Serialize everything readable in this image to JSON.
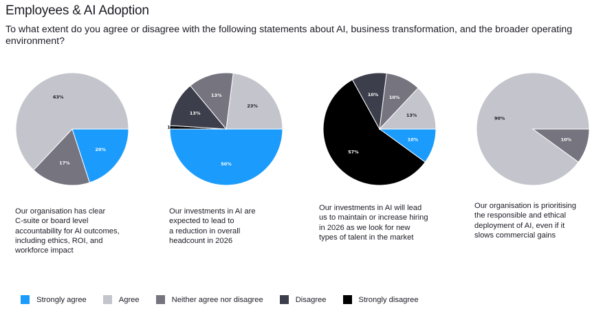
{
  "title": "Employees & AI Adoption",
  "subtitle": "To what extent do you agree or disagree with the following statements about AI, business transformation, and the broader operating environment?",
  "colors": {
    "Strongly agree": "#1b9cfc",
    "Agree": "#c4c4cc",
    "Neither agree nor disagree": "#75747f",
    "Disagree": "#3d3e4b",
    "Strongly disagree": "#000000"
  },
  "legend": [
    "Strongly agree",
    "Agree",
    "Neither agree nor disagree",
    "Disagree",
    "Strongly disagree"
  ],
  "chart_data": [
    {
      "type": "pie",
      "title": "Our organisation has clear\nC-suite or board level\naccountability for AI outcomes,\nincluding ethics, ROI, and\nworkforce impact",
      "slices": [
        {
          "name": "Strongly agree",
          "value": 20,
          "label": "20%"
        },
        {
          "name": "Neither agree nor disagree",
          "value": 17,
          "label": "17%"
        },
        {
          "name": "Agree",
          "value": 63,
          "label": "63%"
        }
      ]
    },
    {
      "type": "pie",
      "title": "Our investments in AI are\nexpected to lead to\na reduction in overall\nheadcount in 2026",
      "slices": [
        {
          "name": "Strongly agree",
          "value": 50,
          "label": "50%"
        },
        {
          "name": "Strongly disagree",
          "value": 1,
          "label": "1%"
        },
        {
          "name": "Disagree",
          "value": 13,
          "label": "13%"
        },
        {
          "name": "Neither agree nor disagree",
          "value": 13,
          "label": "13%"
        },
        {
          "name": "Agree",
          "value": 23,
          "label": "23%"
        }
      ]
    },
    {
      "type": "pie",
      "title": "Our investments in AI will lead\nus to maintain or increase hiring\nin 2026 as we look for new\ntypes of talent in the market",
      "slices": [
        {
          "name": "Strongly agree",
          "value": 10,
          "label": "10%"
        },
        {
          "name": "Strongly disagree",
          "value": 57,
          "label": "57%"
        },
        {
          "name": "Disagree",
          "value": 10,
          "label": "10%"
        },
        {
          "name": "Neither agree nor disagree",
          "value": 10,
          "label": "10%"
        },
        {
          "name": "Agree",
          "value": 13,
          "label": "13%"
        }
      ]
    },
    {
      "type": "pie",
      "title": "Our organisation is prioritising\nthe responsible and ethical\ndeployment of AI, even if it\nslows commercial gains",
      "slices": [
        {
          "name": "Neither agree nor disagree",
          "value": 10,
          "label": "10%"
        },
        {
          "name": "Agree",
          "value": 90,
          "label": "90%"
        }
      ]
    }
  ]
}
